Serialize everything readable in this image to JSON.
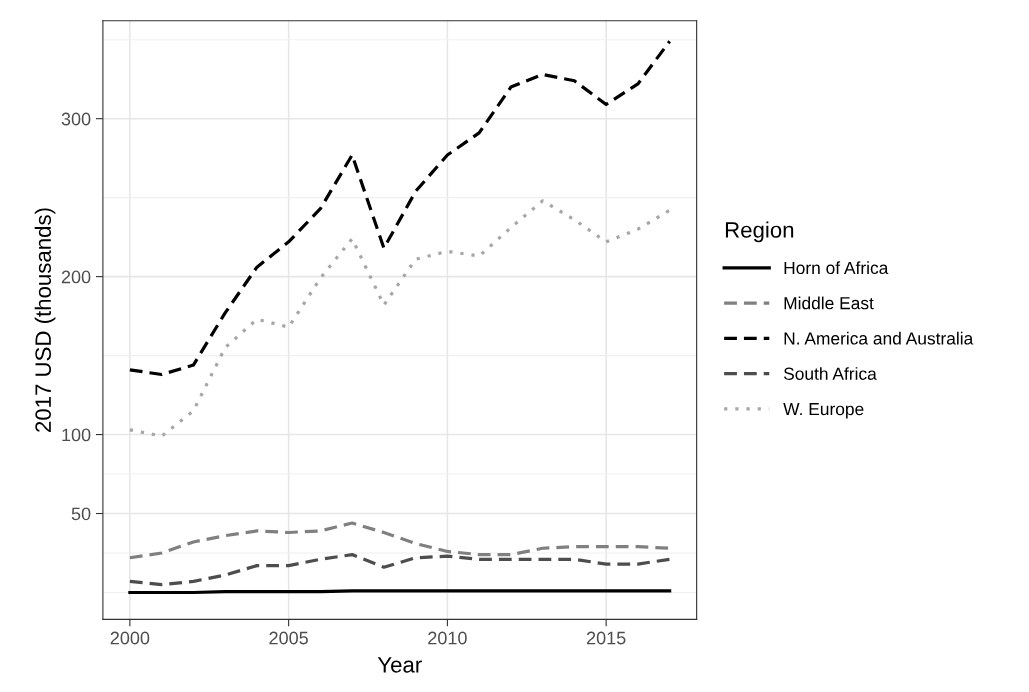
{
  "chart_data": {
    "type": "line",
    "xlabel": "Year",
    "ylabel": "2017 USD (thousands)",
    "legend_title": "Region",
    "legend": "right",
    "grid": true,
    "x": [
      2000,
      2001,
      2002,
      2003,
      2004,
      2005,
      2006,
      2007,
      2008,
      2009,
      2010,
      2011,
      2012,
      2013,
      2014,
      2015,
      2016,
      2017
    ],
    "xlim": [
      1999.15,
      2017.85
    ],
    "xticks": [
      2000,
      2005,
      2010,
      2015
    ],
    "ylim": [
      -17,
      362
    ],
    "yticks": [
      {
        "value": 0,
        "label": null
      },
      {
        "value": 25,
        "label": null
      },
      50,
      {
        "value": 75,
        "label": null
      },
      100,
      {
        "value": 150,
        "label": null
      },
      200,
      {
        "value": 250,
        "label": null
      },
      300,
      {
        "value": 350,
        "label": null
      }
    ],
    "series": [
      {
        "name": "Horn of Africa",
        "color": "#000000",
        "line_style": "solid",
        "values": [
          0,
          0,
          0,
          0.5,
          0.5,
          0.5,
          0.5,
          1,
          1,
          1,
          1,
          1,
          1,
          1,
          1,
          1,
          1,
          1
        ]
      },
      {
        "name": "Middle East",
        "color": "#808080",
        "line_style": "dashed",
        "values": [
          22,
          25,
          32,
          36,
          39,
          38,
          39,
          44,
          38,
          31,
          26,
          24,
          24,
          28,
          29,
          29,
          29,
          28
        ]
      },
      {
        "name": "N. America and Australia",
        "color": "#000000",
        "line_style": "dashed",
        "values": [
          141,
          138,
          144,
          177,
          206,
          222,
          243,
          277,
          218,
          254,
          277,
          291,
          320,
          328,
          324,
          309,
          322,
          349
        ]
      },
      {
        "name": "South Africa",
        "color": "#4d4d4d",
        "line_style": "dashed",
        "values": [
          7,
          5,
          7,
          11,
          17,
          17,
          21,
          24,
          16,
          22,
          23,
          21,
          21,
          21,
          21,
          18,
          18,
          21
        ]
      },
      {
        "name": "W. Europe",
        "color": "#a6a6a6",
        "line_style": "dotted",
        "values": [
          103,
          99,
          115,
          155,
          173,
          168,
          199,
          224,
          182,
          211,
          216,
          213,
          231,
          248,
          236,
          222,
          230,
          242
        ]
      }
    ]
  }
}
